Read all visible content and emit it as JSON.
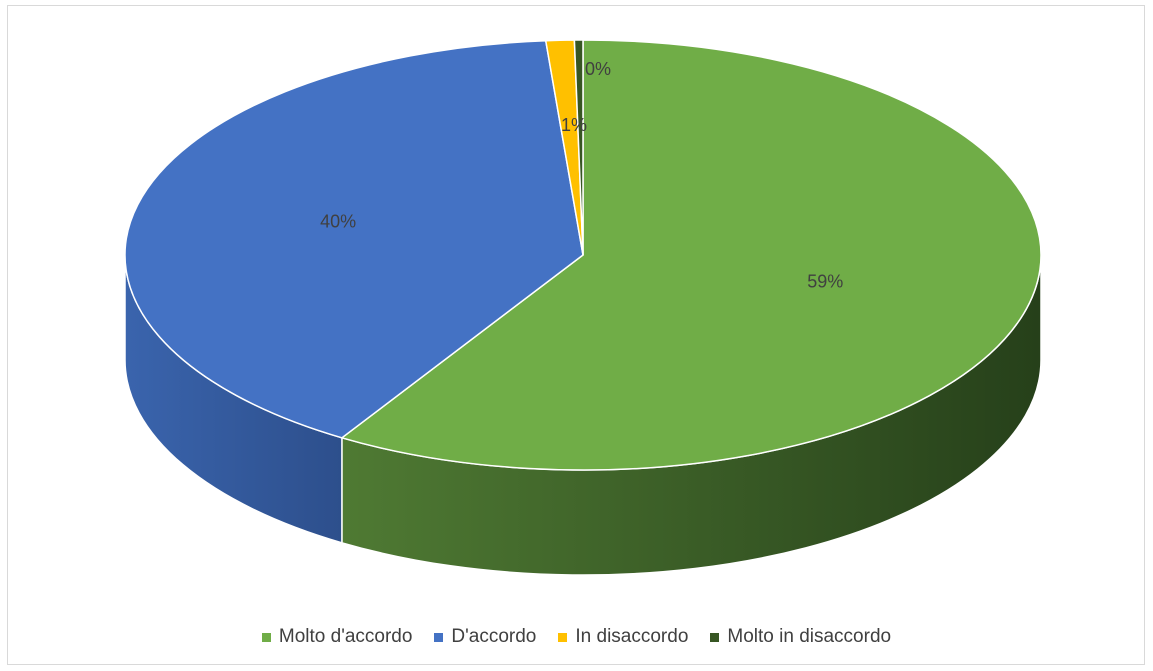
{
  "chart_data": {
    "type": "pie",
    "title": "",
    "style": "3d",
    "legend_position": "bottom",
    "slices": [
      {
        "name": "Molto d'accordo",
        "value": 59,
        "label": "59%",
        "color": "#70AD47",
        "side_color": "#3d6427"
      },
      {
        "name": "D'accordo",
        "value": 40,
        "label": "40%",
        "color": "#4472C4",
        "side_color": "#2f5597"
      },
      {
        "name": "In disaccordo",
        "value": 1,
        "label": "1%",
        "color": "#FFC000",
        "side_color": "#b38600"
      },
      {
        "name": "Molto in disaccordo",
        "value": 0.3,
        "label": "0%",
        "color": "#375623",
        "side_color": "#223615"
      }
    ]
  }
}
